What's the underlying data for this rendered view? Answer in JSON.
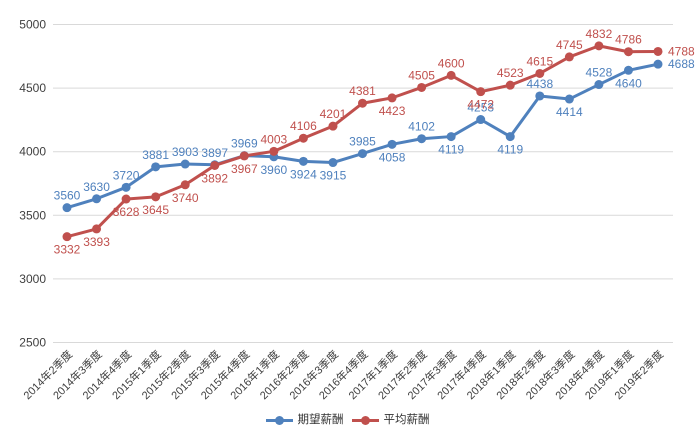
{
  "chart_data": {
    "type": "line",
    "title": "",
    "categories": [
      "2014年2季度",
      "2014年3季度",
      "2014年4季度",
      "2015年1季度",
      "2015年2季度",
      "2015年3季度",
      "2015年4季度",
      "2016年1季度",
      "2016年2季度",
      "2016年3季度",
      "2016年4季度",
      "2017年1季度",
      "2017年2季度",
      "2017年3季度",
      "2017年4季度",
      "2018年1季度",
      "2018年2季度",
      "2018年3季度",
      "2018年4季度",
      "2019年1季度",
      "2019年2季度"
    ],
    "series": [
      {
        "name": "期望薪酬",
        "color": "#4F81BD",
        "values": [
          3560,
          3630,
          3720,
          3881,
          3903,
          3897,
          3969,
          3960,
          3924,
          3915,
          3985,
          4058,
          4102,
          4119,
          4253,
          4119,
          4438,
          4414,
          4528,
          4640,
          4688
        ],
        "label_pos": [
          "above",
          "above",
          "above",
          "above",
          "above",
          "above",
          "above",
          "below",
          "below",
          "below",
          "above",
          "below",
          "above",
          "below",
          "above",
          "below",
          "above",
          "below",
          "above",
          "below",
          "right"
        ]
      },
      {
        "name": "平均薪酬",
        "color": "#C0504D",
        "values": [
          3332,
          3393,
          3628,
          3645,
          3740,
          3892,
          3967,
          4003,
          4106,
          4201,
          4381,
          4423,
          4505,
          4600,
          4472,
          4523,
          4615,
          4745,
          4832,
          4786,
          4788
        ],
        "label_pos": [
          "below",
          "below",
          "below",
          "below",
          "below",
          "below",
          "below",
          "above",
          "above",
          "above",
          "above",
          "below",
          "above",
          "above",
          "below",
          "above",
          "above",
          "above",
          "above",
          "above",
          "right"
        ]
      }
    ],
    "y_axis": {
      "min": 2500,
      "max": 5000,
      "step": 500,
      "tick_labels": [
        "2500",
        "3000",
        "3500",
        "4000",
        "4500",
        "5000"
      ]
    },
    "x_axis": {
      "label_rotation": 45
    },
    "grid": true,
    "legend_position": "bottom",
    "colors": {
      "gridline": "#D9D9D9",
      "axis_text": "#404040"
    }
  }
}
